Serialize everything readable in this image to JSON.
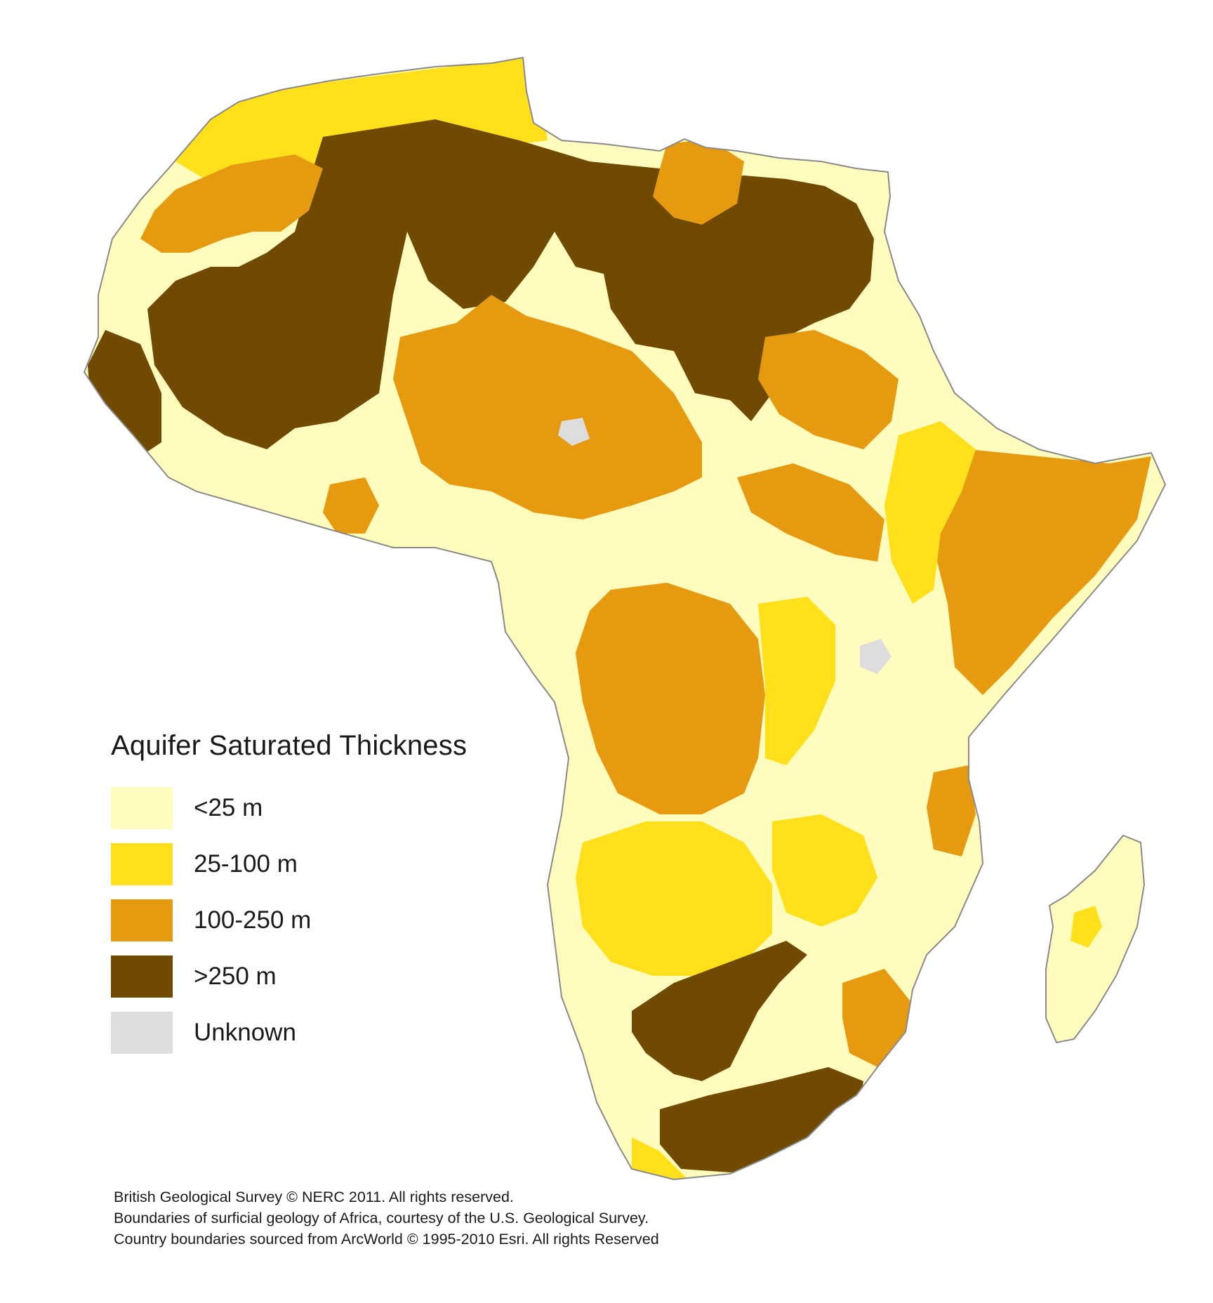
{
  "map": {
    "colors": {
      "lt25": "#fffcbd",
      "m25_100": "#ffe01a",
      "m100_250": "#e59a10",
      "gt250": "#704a00",
      "unknown": "#dddddd",
      "coast": "#8a8a8a"
    }
  },
  "legend": {
    "title": "Aquifer Saturated Thickness",
    "items": [
      {
        "label": "<25 m",
        "color": "#fffcbd"
      },
      {
        "label": "25-100 m",
        "color": "#ffe01a"
      },
      {
        "label": "100-250 m",
        "color": "#e59a10"
      },
      {
        "label": ">250 m",
        "color": "#704a00"
      },
      {
        "label": "Unknown",
        "color": "#dddddd"
      }
    ]
  },
  "credits": [
    "British Geological Survey © NERC 2011.  All rights reserved.",
    "Boundaries of surficial geology of Africa, courtesy of the U.S. Geological Survey.",
    "Country boundaries sourced from ArcWorld © 1995-2010 Esri.  All rights Reserved"
  ]
}
